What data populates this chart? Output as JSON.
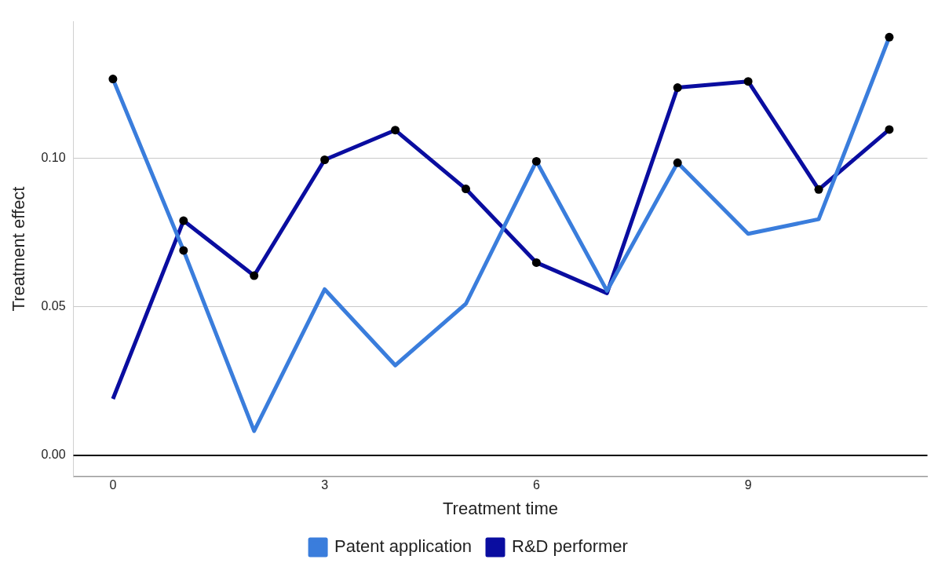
{
  "chart_data": {
    "type": "line",
    "xlabel": "Treatment time",
    "ylabel": "Treatment effect",
    "x": [
      0,
      1,
      2,
      3,
      4,
      5,
      6,
      7,
      8,
      9,
      10,
      11
    ],
    "xlim": [
      -0.56,
      11.54
    ],
    "xticks": [
      0,
      3,
      6,
      9
    ],
    "ylim": [
      -0.007,
      0.146
    ],
    "yticks": [
      {
        "value": 0,
        "label": "0.00"
      },
      {
        "value": 0.05,
        "label": "0.05"
      },
      {
        "value": 0.1,
        "label": "0.10"
      }
    ],
    "grid": "y",
    "legend": "bottom",
    "marker": "none",
    "line_style": "solid",
    "ref_lines": [
      {
        "axis": "y",
        "value": 0,
        "color": "#000000"
      }
    ],
    "series": [
      {
        "name": "Patent application",
        "color": "#3a7ddc",
        "values": [
          0.1267,
          0.069,
          0.0082,
          0.0559,
          0.0303,
          0.051,
          0.099,
          0.0554,
          0.0985,
          0.0746,
          0.0795,
          0.1408
        ]
      },
      {
        "name": "R&D performer",
        "color": "#0a0da0",
        "values": [
          0.019,
          0.079,
          0.0605,
          0.0995,
          0.1095,
          0.0897,
          0.0649,
          0.0546,
          0.1238,
          0.1259,
          0.0895,
          0.1097
        ]
      },
      {
        "type": "scatter",
        "color": "#000000",
        "marker": "circle",
        "x": [
          0,
          1,
          6,
          8,
          11,
          1,
          2,
          3,
          4,
          5,
          6,
          8,
          9,
          10,
          11
        ],
        "values": [
          0.1267,
          0.069,
          0.099,
          0.0985,
          0.1408,
          0.079,
          0.0605,
          0.0995,
          0.1095,
          0.0897,
          0.0649,
          0.1238,
          0.1259,
          0.0895,
          0.1097
        ]
      }
    ]
  }
}
